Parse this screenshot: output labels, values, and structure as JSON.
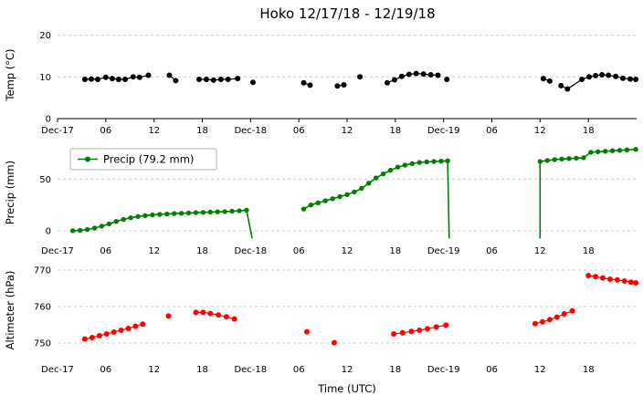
{
  "chart_data": [
    {
      "type": "line",
      "name": "temperature",
      "title": "Hoko 12/17/18 - 12/19/18",
      "ylabel": "Temp (°C)",
      "color": "#000000",
      "ylim": [
        0,
        21
      ],
      "yticks": [
        0,
        10,
        20
      ],
      "yticklabels": [
        "0",
        "10",
        "20"
      ],
      "xlim": [
        0,
        72
      ],
      "x_unit": "hours from Dec-17 00:00 UTC",
      "xticks": [
        0,
        6,
        12,
        18,
        24,
        30,
        36,
        42,
        48,
        54,
        60,
        66
      ],
      "xticklabels": [
        "Dec-17",
        "06",
        "12",
        "18",
        "Dec-18",
        "06",
        "12",
        "18",
        "Dec-19",
        "06",
        "12",
        "18"
      ],
      "grid": true,
      "axis_line_value": 0,
      "segments": [
        {
          "markers": true,
          "points": [
            [
              3.4,
              9.4
            ],
            [
              4.2,
              9.5
            ],
            [
              5.0,
              9.4
            ],
            [
              6.0,
              9.9
            ],
            [
              6.8,
              9.6
            ],
            [
              7.6,
              9.4
            ],
            [
              8.4,
              9.4
            ],
            [
              9.4,
              10.0
            ],
            [
              10.2,
              9.9
            ],
            [
              11.3,
              10.4
            ]
          ]
        },
        {
          "markers": true,
          "points": [
            [
              13.9,
              10.4
            ],
            [
              14.7,
              9.1
            ]
          ]
        },
        {
          "markers": true,
          "points": [
            [
              17.6,
              9.4
            ],
            [
              18.5,
              9.4
            ],
            [
              19.4,
              9.2
            ],
            [
              20.3,
              9.4
            ],
            [
              21.2,
              9.4
            ],
            [
              22.4,
              9.6
            ]
          ]
        },
        {
          "markers": true,
          "points": [
            [
              24.3,
              8.7
            ]
          ]
        },
        {
          "markers": true,
          "points": [
            [
              30.6,
              8.6
            ],
            [
              31.4,
              8.0
            ]
          ]
        },
        {
          "markers": true,
          "points": [
            [
              34.8,
              7.8
            ],
            [
              35.6,
              8.1
            ]
          ]
        },
        {
          "markers": true,
          "points": [
            [
              37.6,
              10.0
            ]
          ]
        },
        {
          "markers": true,
          "points": [
            [
              41.0,
              8.6
            ],
            [
              41.9,
              9.3
            ],
            [
              42.8,
              10.1
            ],
            [
              43.7,
              10.6
            ],
            [
              44.6,
              10.8
            ],
            [
              45.5,
              10.7
            ],
            [
              46.4,
              10.5
            ],
            [
              47.3,
              10.4
            ]
          ]
        },
        {
          "markers": true,
          "points": [
            [
              48.4,
              9.4
            ]
          ]
        },
        {
          "markers": true,
          "points": [
            [
              60.4,
              9.6
            ],
            [
              61.2,
              9.0
            ]
          ]
        },
        {
          "markers": true,
          "points": [
            [
              62.6,
              7.9
            ],
            [
              63.4,
              7.1
            ],
            [
              65.2,
              9.4
            ],
            [
              66.1,
              10.0
            ],
            [
              66.9,
              10.3
            ],
            [
              67.7,
              10.5
            ],
            [
              68.5,
              10.4
            ],
            [
              69.4,
              10.1
            ],
            [
              70.3,
              9.7
            ],
            [
              71.2,
              9.5
            ],
            [
              71.9,
              9.4
            ]
          ]
        }
      ]
    },
    {
      "type": "line",
      "name": "precipitation",
      "ylabel": "Precip (mm)",
      "color": "#008000",
      "legend": {
        "label": "Precip (79.2 mm)",
        "position": "upper left"
      },
      "ylim": [
        -8,
        82
      ],
      "yticks": [
        0,
        50
      ],
      "yticklabels": [
        "0",
        "50"
      ],
      "xlim": [
        0,
        72
      ],
      "x_unit": "hours from Dec-17 00:00 UTC",
      "xticks": [
        0,
        6,
        12,
        18,
        24,
        30,
        36,
        42,
        48,
        54,
        60,
        66
      ],
      "xticklabels": [
        "Dec-17",
        "06",
        "12",
        "18",
        "Dec-18",
        "06",
        "12",
        "18",
        "Dec-19",
        "06",
        "12",
        "18"
      ],
      "grid": true,
      "segments": [
        {
          "markers": true,
          "points": [
            [
              1.9,
              0
            ],
            [
              2.8,
              0.4
            ],
            [
              3.7,
              1.2
            ],
            [
              4.6,
              2.6
            ],
            [
              5.5,
              4.4
            ],
            [
              6.4,
              6.6
            ],
            [
              7.3,
              9.0
            ],
            [
              8.2,
              11.0
            ],
            [
              9.1,
              12.6
            ],
            [
              10.0,
              13.8
            ],
            [
              10.9,
              14.7
            ],
            [
              11.8,
              15.3
            ],
            [
              12.7,
              15.8
            ],
            [
              13.6,
              16.2
            ],
            [
              14.5,
              16.6
            ],
            [
              15.4,
              16.9
            ],
            [
              16.3,
              17.2
            ],
            [
              17.2,
              17.5
            ],
            [
              18.1,
              17.8
            ],
            [
              19.0,
              18.0
            ],
            [
              19.9,
              18.3
            ],
            [
              20.8,
              18.6
            ],
            [
              21.7,
              18.9
            ],
            [
              22.6,
              19.3
            ],
            [
              23.5,
              20.0
            ]
          ]
        },
        {
          "markers": false,
          "points": [
            [
              23.5,
              20.0
            ],
            [
              24.2,
              -7.5
            ]
          ]
        },
        {
          "markers": true,
          "points": [
            [
              30.6,
              21.0
            ],
            [
              31.5,
              25.0
            ],
            [
              32.4,
              27.0
            ],
            [
              33.3,
              29.0
            ],
            [
              34.2,
              31.0
            ],
            [
              35.1,
              33.0
            ],
            [
              36.0,
              35.0
            ],
            [
              36.9,
              37.5
            ],
            [
              37.8,
              41.0
            ],
            [
              38.7,
              46.0
            ],
            [
              39.6,
              51.0
            ],
            [
              40.5,
              55.0
            ],
            [
              41.4,
              58.5
            ],
            [
              42.3,
              61.5
            ],
            [
              43.2,
              63.5
            ],
            [
              44.1,
              65.0
            ],
            [
              45.0,
              66.0
            ],
            [
              45.9,
              66.6
            ],
            [
              46.8,
              67.0
            ],
            [
              47.7,
              67.3
            ],
            [
              48.5,
              67.6
            ]
          ]
        },
        {
          "markers": false,
          "points": [
            [
              48.5,
              67.6
            ],
            [
              48.7,
              -7.5
            ]
          ]
        },
        {
          "markers": false,
          "points": [
            [
              60.0,
              -7.5
            ],
            [
              60.0,
              67.0
            ]
          ]
        },
        {
          "markers": true,
          "points": [
            [
              60.0,
              67.0
            ],
            [
              60.9,
              68.0
            ],
            [
              61.8,
              68.8
            ],
            [
              62.7,
              69.4
            ],
            [
              63.6,
              69.8
            ],
            [
              64.5,
              70.2
            ],
            [
              65.4,
              70.6
            ],
            [
              66.3,
              75.8
            ],
            [
              67.2,
              76.4
            ],
            [
              68.1,
              76.9
            ],
            [
              69.0,
              77.4
            ],
            [
              69.9,
              77.8
            ],
            [
              70.8,
              78.2
            ],
            [
              71.9,
              78.7
            ]
          ]
        }
      ]
    },
    {
      "type": "line",
      "name": "altimeter",
      "ylabel": "Altimeter (hPa)",
      "xlabel": "Time (UTC)",
      "color": "#ff0000",
      "ylim": [
        746,
        772
      ],
      "yticks": [
        750,
        760,
        770
      ],
      "yticklabels": [
        "750",
        "760",
        "770"
      ],
      "xlim": [
        0,
        72
      ],
      "x_unit": "hours from Dec-17 00:00 UTC",
      "xticks": [
        0,
        6,
        12,
        18,
        24,
        30,
        36,
        42,
        48,
        54,
        60,
        66
      ],
      "xticklabels": [
        "Dec-17",
        "06",
        "12",
        "18",
        "Dec-18",
        "06",
        "12",
        "18",
        "Dec-19",
        "06",
        "12",
        "18"
      ],
      "grid": true,
      "segments": [
        {
          "markers": true,
          "points": [
            [
              3.4,
              751.1
            ],
            [
              4.3,
              751.5
            ],
            [
              5.2,
              752.0
            ],
            [
              6.1,
              752.5
            ],
            [
              7.0,
              753.0
            ],
            [
              7.9,
              753.5
            ],
            [
              8.8,
              754.0
            ],
            [
              9.7,
              754.6
            ],
            [
              10.6,
              755.2
            ]
          ]
        },
        {
          "markers": true,
          "points": [
            [
              13.8,
              757.4
            ]
          ]
        },
        {
          "markers": true,
          "points": [
            [
              17.2,
              758.4
            ],
            [
              18.1,
              758.4
            ],
            [
              19.0,
              758.1
            ],
            [
              20.0,
              757.7
            ],
            [
              21.0,
              757.2
            ],
            [
              22.0,
              756.6
            ]
          ]
        },
        {
          "markers": true,
          "points": [
            [
              31.0,
              753.1
            ]
          ]
        },
        {
          "markers": true,
          "points": [
            [
              34.4,
              750.1
            ]
          ]
        },
        {
          "markers": true,
          "points": [
            [
              41.8,
              752.5
            ],
            [
              42.9,
              752.8
            ],
            [
              44.0,
              753.2
            ],
            [
              45.0,
              753.5
            ],
            [
              46.0,
              753.9
            ],
            [
              47.1,
              754.4
            ],
            [
              48.3,
              754.9
            ]
          ]
        },
        {
          "markers": true,
          "points": [
            [
              59.4,
              755.3
            ],
            [
              60.3,
              755.8
            ],
            [
              61.2,
              756.4
            ],
            [
              62.1,
              757.1
            ],
            [
              63.0,
              758.0
            ],
            [
              64.0,
              758.8
            ]
          ]
        },
        {
          "markers": true,
          "points": [
            [
              66.0,
              768.5
            ],
            [
              66.9,
              768.2
            ],
            [
              67.8,
              767.8
            ],
            [
              68.7,
              767.5
            ],
            [
              69.6,
              767.3
            ],
            [
              70.5,
              767.0
            ],
            [
              71.3,
              766.7
            ],
            [
              71.9,
              766.5
            ]
          ]
        }
      ]
    }
  ],
  "colors": {
    "grid": "#cccccc",
    "axis": "#000000",
    "legend_border": "#b3b3b3"
  }
}
